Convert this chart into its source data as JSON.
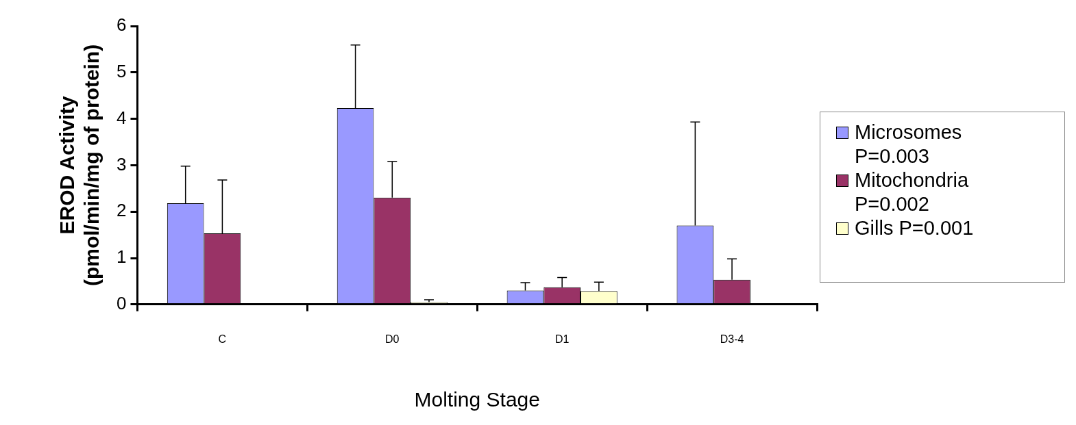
{
  "chart_data": {
    "type": "bar",
    "xlabel": "Molting Stage",
    "ylabel": "EROD Activity\n(pmol/min/mg of protein)",
    "categories": [
      "C",
      "D0",
      "D1",
      "D3-4"
    ],
    "ylim": [
      0,
      6
    ],
    "yticks": [
      0,
      1,
      2,
      3,
      4,
      5,
      6
    ],
    "grid": false,
    "legend": "right",
    "series": [
      {
        "name": "Microsomes P=0.003",
        "color": "#9999ff",
        "values": [
          2.18,
          4.23,
          0.3,
          1.7
        ],
        "errors": [
          [
            2.18,
            2.98
          ],
          [
            4.23,
            5.59
          ],
          [
            0.3,
            0.47
          ],
          [
            1.7,
            3.93
          ]
        ]
      },
      {
        "name": "Mitochondria P=0.002",
        "color": "#993366",
        "values": [
          1.53,
          2.3,
          0.37,
          0.53
        ],
        "errors": [
          [
            1.53,
            2.68
          ],
          [
            2.3,
            3.08
          ],
          [
            0.37,
            0.58
          ],
          [
            0.53,
            0.98
          ]
        ]
      },
      {
        "name": "Gills P=0.001",
        "color": "#ffffcc",
        "values": [
          null,
          0.05,
          0.29,
          null
        ],
        "errors": [
          null,
          [
            0.05,
            0.1
          ],
          [
            0.29,
            0.48
          ],
          null
        ]
      }
    ]
  }
}
